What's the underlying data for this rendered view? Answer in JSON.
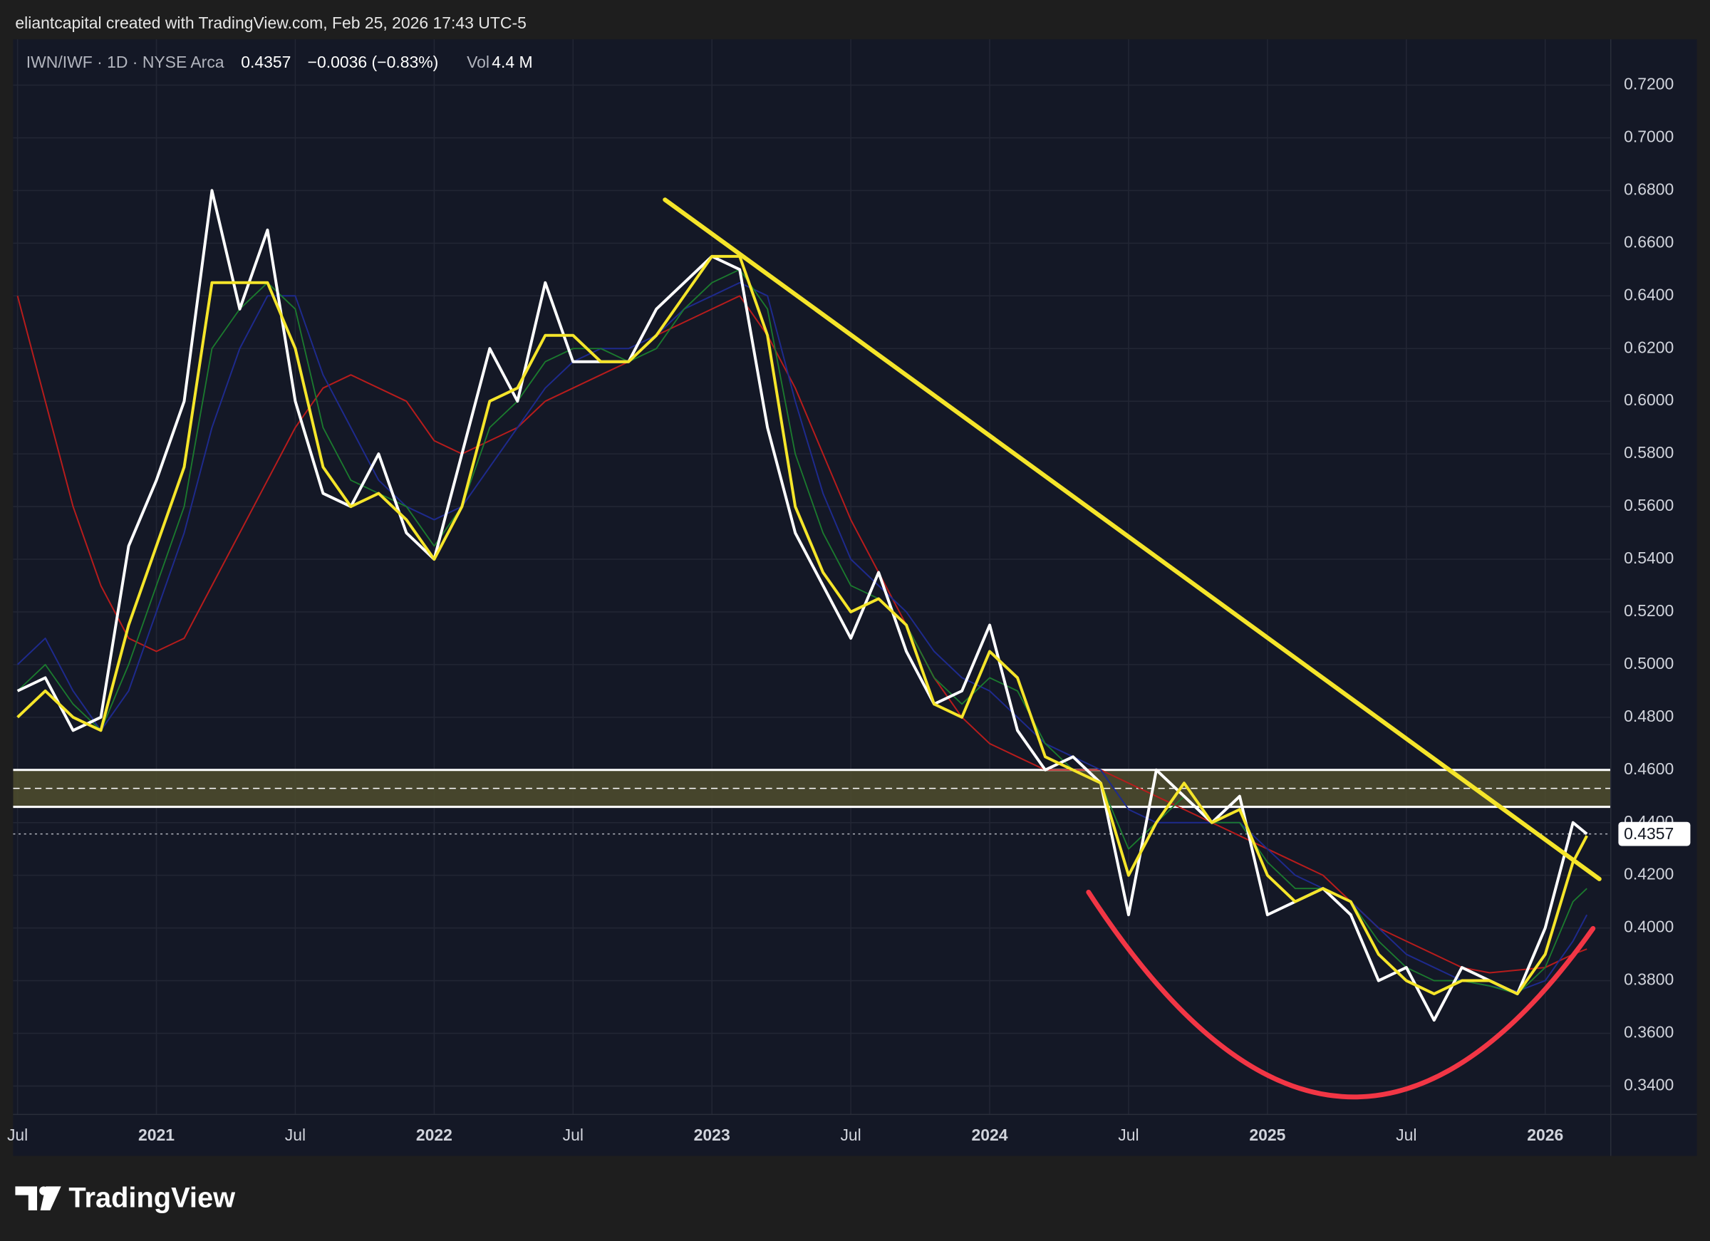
{
  "header": "eliantcapital created with TradingView.com, Feb 25, 2026 17:43 UTC-5",
  "footer": {
    "brand": "TradingView"
  },
  "chart_data": {
    "type": "line",
    "legend": {
      "symbol": "IWN/IWF · 1D · NYSE Arca",
      "last": 0.4357,
      "change": "−0.0036 (−0.83%)",
      "vol_label": "Vol",
      "vol": "4.4 M"
    },
    "x": [
      2020.5,
      2020.6,
      2020.7,
      2020.8,
      2020.9,
      2021.0,
      2021.1,
      2021.2,
      2021.3,
      2021.4,
      2021.5,
      2021.6,
      2021.7,
      2021.8,
      2021.9,
      2022.0,
      2022.1,
      2022.2,
      2022.3,
      2022.4,
      2022.5,
      2022.6,
      2022.7,
      2022.8,
      2022.9,
      2023.0,
      2023.1,
      2023.2,
      2023.3,
      2023.4,
      2023.5,
      2023.6,
      2023.7,
      2023.8,
      2023.9,
      2024.0,
      2024.1,
      2024.2,
      2024.3,
      2024.4,
      2024.5,
      2024.6,
      2024.7,
      2024.8,
      2024.9,
      2025.0,
      2025.1,
      2025.2,
      2025.3,
      2025.4,
      2025.5,
      2025.6,
      2025.7,
      2025.8,
      2025.9,
      2026.0,
      2026.1,
      2026.15
    ],
    "series": [
      {
        "color": "#b71c1c",
        "width": 1.3,
        "values": [
          0.64,
          0.6,
          0.56,
          0.53,
          0.51,
          0.505,
          0.51,
          0.53,
          0.55,
          0.57,
          0.59,
          0.605,
          0.61,
          0.605,
          0.6,
          0.585,
          0.58,
          0.585,
          0.59,
          0.6,
          0.605,
          0.61,
          0.615,
          0.625,
          0.63,
          0.635,
          0.64,
          0.625,
          0.605,
          0.58,
          0.555,
          0.535,
          0.515,
          0.495,
          0.48,
          0.47,
          0.465,
          0.46,
          0.46,
          0.46,
          0.455,
          0.45,
          0.445,
          0.44,
          0.435,
          0.43,
          0.425,
          0.42,
          0.41,
          0.4,
          0.395,
          0.39,
          0.385,
          0.383,
          0.384,
          0.385,
          0.39,
          0.392
        ]
      },
      {
        "color": "#1e2a8c",
        "width": 1.3,
        "values": [
          0.5,
          0.51,
          0.49,
          0.475,
          0.49,
          0.52,
          0.55,
          0.59,
          0.62,
          0.64,
          0.64,
          0.61,
          0.59,
          0.57,
          0.56,
          0.555,
          0.56,
          0.575,
          0.59,
          0.605,
          0.615,
          0.62,
          0.62,
          0.625,
          0.635,
          0.64,
          0.645,
          0.64,
          0.6,
          0.565,
          0.54,
          0.53,
          0.52,
          0.505,
          0.495,
          0.49,
          0.48,
          0.47,
          0.465,
          0.46,
          0.445,
          0.44,
          0.44,
          0.44,
          0.44,
          0.43,
          0.42,
          0.415,
          0.41,
          0.4,
          0.39,
          0.385,
          0.38,
          0.378,
          0.376,
          0.38,
          0.395,
          0.405
        ]
      },
      {
        "color": "#1b7a2e",
        "width": 1.2,
        "values": [
          0.49,
          0.5,
          0.485,
          0.475,
          0.5,
          0.53,
          0.56,
          0.62,
          0.635,
          0.645,
          0.635,
          0.59,
          0.57,
          0.565,
          0.56,
          0.545,
          0.56,
          0.59,
          0.6,
          0.615,
          0.62,
          0.62,
          0.615,
          0.62,
          0.635,
          0.645,
          0.65,
          0.635,
          0.58,
          0.55,
          0.53,
          0.525,
          0.515,
          0.495,
          0.485,
          0.495,
          0.49,
          0.47,
          0.46,
          0.455,
          0.43,
          0.44,
          0.45,
          0.44,
          0.44,
          0.425,
          0.415,
          0.415,
          0.41,
          0.395,
          0.385,
          0.38,
          0.38,
          0.378,
          0.375,
          0.385,
          0.41,
          0.415
        ]
      },
      {
        "color": "#ffffff",
        "width": 2.6,
        "values": [
          0.49,
          0.495,
          0.475,
          0.48,
          0.545,
          0.57,
          0.6,
          0.68,
          0.635,
          0.665,
          0.6,
          0.565,
          0.56,
          0.58,
          0.55,
          0.54,
          0.58,
          0.62,
          0.6,
          0.645,
          0.615,
          0.615,
          0.615,
          0.635,
          0.645,
          0.655,
          0.65,
          0.59,
          0.55,
          0.53,
          0.51,
          0.535,
          0.505,
          0.485,
          0.49,
          0.515,
          0.475,
          0.46,
          0.465,
          0.455,
          0.405,
          0.46,
          0.45,
          0.44,
          0.45,
          0.405,
          0.41,
          0.415,
          0.405,
          0.38,
          0.385,
          0.365,
          0.385,
          0.38,
          0.375,
          0.4,
          0.44,
          0.4357
        ]
      },
      {
        "color": "#f5e52a",
        "width": 2.6,
        "values": [
          0.48,
          0.49,
          0.48,
          0.475,
          0.515,
          0.545,
          0.575,
          0.645,
          0.645,
          0.645,
          0.62,
          0.575,
          0.56,
          0.565,
          0.555,
          0.54,
          0.56,
          0.6,
          0.605,
          0.625,
          0.625,
          0.615,
          0.615,
          0.625,
          0.64,
          0.655,
          0.655,
          0.625,
          0.56,
          0.535,
          0.52,
          0.525,
          0.515,
          0.485,
          0.48,
          0.505,
          0.495,
          0.465,
          0.46,
          0.455,
          0.42,
          0.44,
          0.455,
          0.44,
          0.445,
          0.42,
          0.41,
          0.415,
          0.41,
          0.39,
          0.38,
          0.375,
          0.38,
          0.38,
          0.375,
          0.39,
          0.425,
          0.435
        ]
      }
    ],
    "xlim": [
      2020.484,
      2026.236
    ],
    "xticks": [
      {
        "value": 2020.5,
        "label": "Jul"
      },
      2021,
      {
        "value": 2021.5,
        "label": "Jul"
      },
      2022,
      {
        "value": 2022.5,
        "label": "Jul"
      },
      2023,
      {
        "value": 2023.5,
        "label": "Jul"
      },
      2024,
      {
        "value": 2024.5,
        "label": "Jul"
      },
      2025,
      {
        "value": 2025.5,
        "label": "Jul"
      },
      2026
    ],
    "ylim": [
      0.3292,
      0.7374
    ],
    "yticks": [
      {
        "value": 0.34,
        "label": "0.3400"
      },
      {
        "value": 0.36,
        "label": "0.3600"
      },
      {
        "value": 0.38,
        "label": "0.3800"
      },
      {
        "value": 0.4,
        "label": "0.4000"
      },
      {
        "value": 0.42,
        "label": "0.4200"
      },
      {
        "value": 0.44,
        "label": "0.4400"
      },
      {
        "value": 0.46,
        "label": "0.4600"
      },
      {
        "value": 0.48,
        "label": "0.4800"
      },
      {
        "value": 0.5,
        "label": "0.5000"
      },
      {
        "value": 0.52,
        "label": "0.5200"
      },
      {
        "value": 0.54,
        "label": "0.5400"
      },
      {
        "value": 0.56,
        "label": "0.5600"
      },
      {
        "value": 0.58,
        "label": "0.5800"
      },
      {
        "value": 0.6,
        "label": "0.6000"
      },
      {
        "value": 0.62,
        "label": "0.6200"
      },
      {
        "value": 0.64,
        "label": "0.6400"
      },
      {
        "value": 0.66,
        "label": "0.6600"
      },
      {
        "value": 0.68,
        "label": "0.6800"
      },
      {
        "value": 0.7,
        "label": "0.7000"
      },
      {
        "value": 0.72,
        "label": "0.7200"
      }
    ],
    "grid": true,
    "zone": {
      "low": 0.446,
      "high": 0.46,
      "mid": 0.453,
      "color": "#4f4d2e"
    },
    "trendline": {
      "x": [
        2022.831,
        2026.195
      ],
      "y": [
        0.6765,
        0.4186
      ],
      "color": "#f5e52a"
    },
    "arc": {
      "x": [
        2024.356,
        2025.267,
        2026.172
      ],
      "y": [
        0.4136,
        0.336,
        0.3998
      ],
      "color": "#f23645"
    }
  }
}
